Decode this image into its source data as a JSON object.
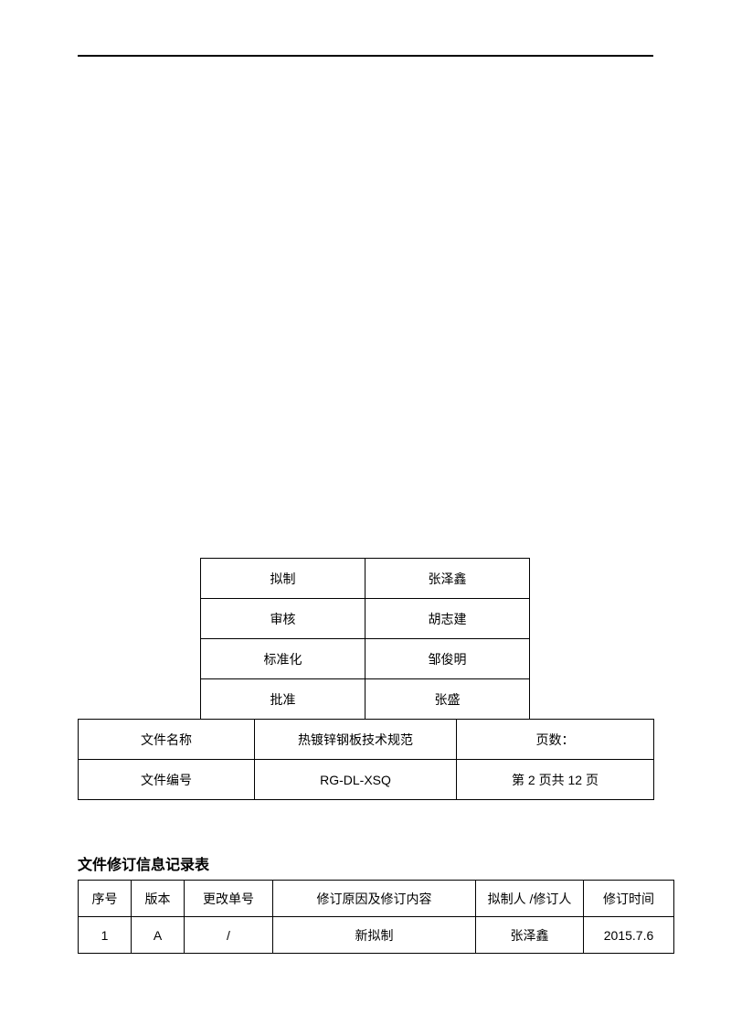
{
  "approval": {
    "rows": [
      {
        "label": "拟制",
        "value": "张泽鑫"
      },
      {
        "label": "审核",
        "value": "胡志建"
      },
      {
        "label": "标准化",
        "value": "邹俊明"
      },
      {
        "label": "批准",
        "value": "张盛"
      }
    ]
  },
  "info": {
    "row1": {
      "label": "文件名称",
      "value": "热镀锌钢板技术规范",
      "page_label": "页数："
    },
    "row2": {
      "label": "文件编号",
      "value": "RG-DL-XSQ",
      "page_info": "第 2 页共 12 页"
    }
  },
  "revision": {
    "title": "文件修订信息记录表",
    "headers": {
      "seq": "序号",
      "version": "版本",
      "change_no": "更改单号",
      "reason": "修订原因及修订内容",
      "author": "拟制人 /修订人",
      "date": "修订时间"
    },
    "rows": [
      {
        "seq": "1",
        "version": "A",
        "change_no": "/",
        "reason": "新拟制",
        "author": "张泽鑫",
        "date": "2015.7.6"
      }
    ]
  }
}
